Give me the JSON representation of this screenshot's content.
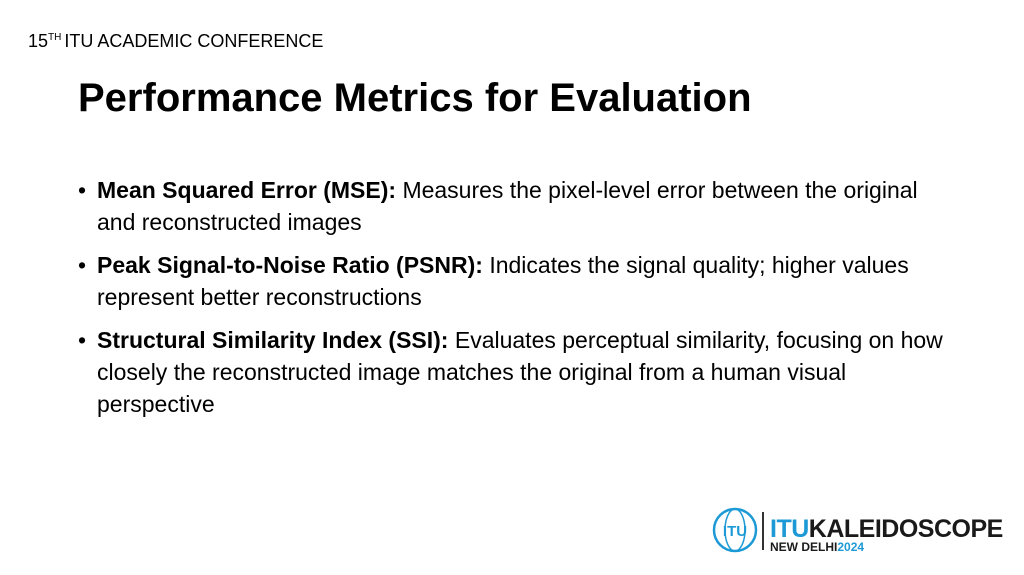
{
  "header": {
    "number": "15",
    "superscript": "TH",
    "conference": "ITU ACADEMIC CONFERENCE"
  },
  "title": "Performance Metrics for Evaluation",
  "bullets": [
    {
      "term": "Mean Squared Error (MSE):",
      "text": "Measures the pixel-level error between the original and reconstructed images"
    },
    {
      "term": "Peak Signal-to-Noise Ratio (PSNR):",
      "text": "Indicates the signal quality; higher values represent better reconstructions"
    },
    {
      "term": "Structural Similarity Index (SSI):",
      "text": "Evaluates perceptual similarity, focusing on how closely the reconstructed image matches the original from a human visual perspective"
    }
  ],
  "logo": {
    "emblem": "ITU",
    "brand_a": "ITU",
    "brand_b": "KALEIDOSCOPE",
    "city": "NEW DELHI",
    "year": "2024"
  }
}
